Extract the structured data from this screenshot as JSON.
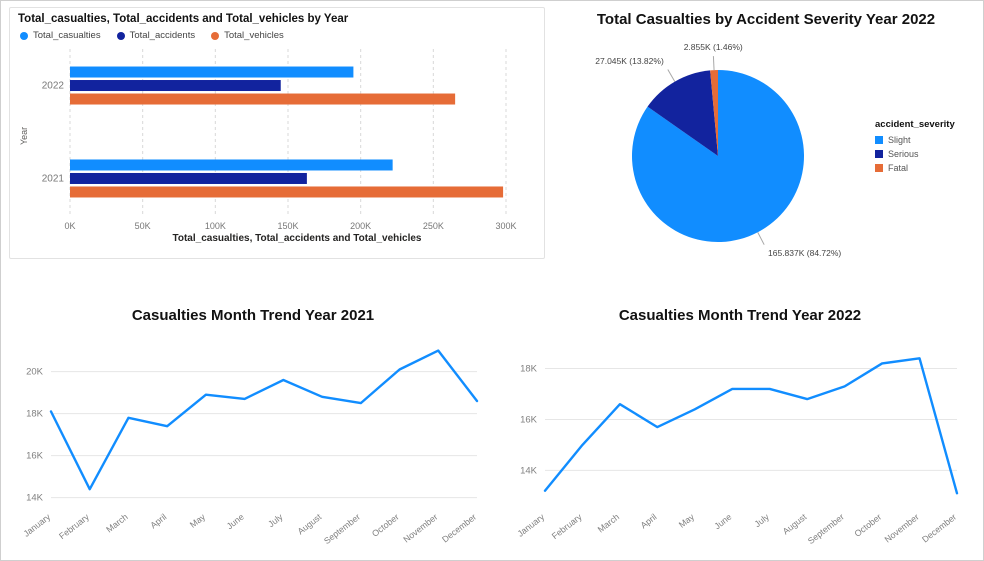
{
  "colors": {
    "casualties_blue": "#118DFF",
    "accidents_navy": "#12239E",
    "vehicles_orange": "#E66C37"
  },
  "chart_data": [
    {
      "type": "bar",
      "orientation": "horizontal",
      "title": "Total_casualties, Total_accidents and Total_vehicles by Year",
      "xlabel": "Total_casualties, Total_accidents and Total_vehicles",
      "ylabel": "Year",
      "categories": [
        "2022",
        "2021"
      ],
      "series": [
        {
          "name": "Total_casualties",
          "color": "#118DFF",
          "values": [
            195000,
            222000
          ]
        },
        {
          "name": "Total_accidents",
          "color": "#12239E",
          "values": [
            145000,
            163000
          ]
        },
        {
          "name": "Total_vehicles",
          "color": "#E66C37",
          "values": [
            265000,
            298000
          ]
        }
      ],
      "xlim": [
        0,
        300000
      ],
      "xticks": [
        0,
        50000,
        100000,
        150000,
        200000,
        250000,
        300000
      ],
      "xtick_labels": [
        "0K",
        "50K",
        "100K",
        "150K",
        "200K",
        "250K",
        "300K"
      ],
      "grid": "vertical-dashed",
      "legend_position": "top"
    },
    {
      "type": "pie",
      "title": "Total Casualties by Accident Severity Year 2022",
      "legend_title": "accident_severity",
      "legend_position": "right",
      "slices": [
        {
          "label": "Slight",
          "value": 165837,
          "pct": 84.72,
          "color": "#118DFF",
          "callout": "165.837K (84.72%)"
        },
        {
          "label": "Serious",
          "value": 27045,
          "pct": 13.82,
          "color": "#12239E",
          "callout": "27.045K (13.82%)"
        },
        {
          "label": "Fatal",
          "value": 2855,
          "pct": 1.46,
          "color": "#E66C37",
          "callout": "2.855K (1.46%)"
        }
      ]
    },
    {
      "type": "line",
      "title": "Casualties Month Trend Year 2021",
      "categories": [
        "January",
        "February",
        "March",
        "April",
        "May",
        "June",
        "July",
        "August",
        "September",
        "October",
        "November",
        "December"
      ],
      "values": [
        18100,
        14400,
        17800,
        17400,
        18900,
        18700,
        19600,
        18800,
        18500,
        20100,
        21000,
        18600
      ],
      "color": "#118DFF",
      "ylim": [
        13600,
        21600
      ],
      "yticks": [
        14000,
        16000,
        18000,
        20000
      ],
      "ytick_labels": [
        "14K",
        "16K",
        "18K",
        "20K"
      ],
      "grid": "horizontal"
    },
    {
      "type": "line",
      "title": "Casualties Month Trend Year 2022",
      "categories": [
        "January",
        "February",
        "March",
        "April",
        "May",
        "June",
        "July",
        "August",
        "September",
        "October",
        "November",
        "December"
      ],
      "values": [
        13200,
        15000,
        16600,
        15700,
        16400,
        17200,
        17200,
        16800,
        17300,
        18200,
        18400,
        13100
      ],
      "color": "#118DFF",
      "ylim": [
        12600,
        19200
      ],
      "yticks": [
        14000,
        16000,
        18000
      ],
      "ytick_labels": [
        "14K",
        "16K",
        "18K"
      ],
      "grid": "horizontal"
    }
  ]
}
